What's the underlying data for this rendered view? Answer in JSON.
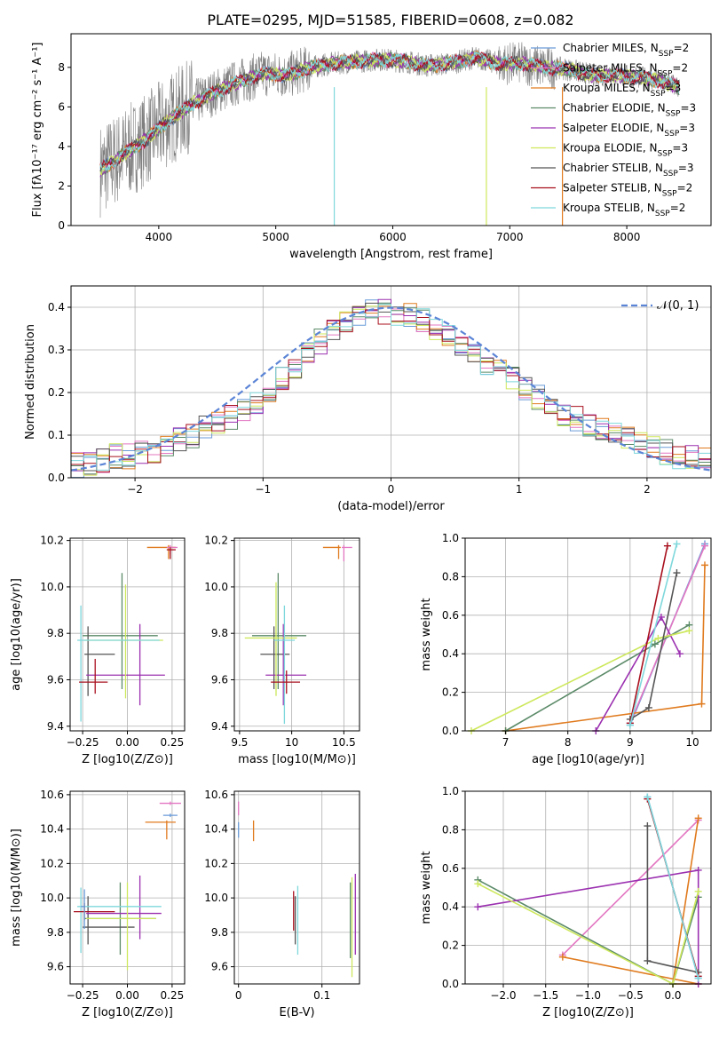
{
  "figure": {
    "title": "PLATE=0295, MJD=51585, FIBERID=0608, z=0.082"
  },
  "colors": {
    "chabrier_miles": "#6a9bd8",
    "salpeter_miles": "#e377c2",
    "kroupa_miles": "#e07b1f",
    "chabrier_elodie": "#5b8a68",
    "salpeter_elodie": "#9b30b0",
    "kroupa_elodie": "#cde85c",
    "chabrier_stelib": "#555555",
    "salpeter_stelib": "#a8101e",
    "kroupa_stelib": "#7fd8dc",
    "data": "#7f7f7f",
    "gaussian": "#5b84d6"
  },
  "legend": {
    "spectrum": [
      "Chabrier MILES, N_SSP=2",
      "Salpeter MILES, N_SSP=2",
      "Kroupa MILES, N_SSP=3",
      "Chabrier ELODIE, N_SSP=3",
      "Salpeter ELODIE, N_SSP=3",
      "Kroupa ELODIE, N_SSP=3",
      "Chabrier STELIB, N_SSP=3",
      "Salpeter STELIB, N_SSP=2",
      "Kroupa STELIB, N_SSP=2"
    ],
    "residuals": "𝒩(0, 1)"
  },
  "chart_data": [
    {
      "id": "spectrum",
      "type": "line",
      "xlabel": "wavelength [Angstrom, rest frame]",
      "ylabel": "Flux [fλ10⁻¹⁷ erg cm⁻² s⁻¹ A⁻¹]",
      "xlim": [
        3250,
        8720
      ],
      "ylim": [
        0,
        9.7
      ],
      "xticks": [
        4000,
        5000,
        6000,
        7000,
        8000
      ],
      "yticks": [
        0,
        2,
        4,
        6,
        8
      ],
      "grid": false,
      "legend_position": "right",
      "continuum": {
        "x": [
          3500,
          3700,
          3900,
          4100,
          4300,
          4500,
          4700,
          4900,
          5100,
          5300,
          5500,
          5700,
          5900,
          6100,
          6300,
          6500,
          6700,
          6900,
          7100,
          7300,
          7500,
          7700,
          7900,
          8100,
          8300,
          8450
        ],
        "y": [
          2.8,
          3.6,
          4.4,
          5.4,
          6.2,
          6.8,
          7.3,
          7.7,
          7.6,
          8.0,
          8.2,
          8.3,
          8.4,
          8.3,
          8.1,
          8.2,
          8.5,
          8.2,
          8.2,
          8.0,
          7.9,
          7.6,
          7.6,
          7.5,
          7.3,
          7.0
        ]
      }
    },
    {
      "id": "residuals",
      "type": "histogram",
      "xlabel": "(data-model)/error",
      "ylabel": "Normed distribution",
      "xlim": [
        -2.5,
        2.5
      ],
      "ylim": [
        0,
        0.45
      ],
      "xticks": [
        -2,
        -1,
        0,
        1,
        2
      ],
      "yticks": [
        0.0,
        0.1,
        0.2,
        0.3,
        0.4
      ],
      "grid": true,
      "legend_position": "top-right",
      "bin_width": 0.1,
      "bin_edges_start": -2.5,
      "series_values": [
        0.03,
        0.03,
        0.04,
        0.05,
        0.05,
        0.06,
        0.06,
        0.07,
        0.09,
        0.1,
        0.12,
        0.13,
        0.14,
        0.16,
        0.18,
        0.2,
        0.23,
        0.26,
        0.29,
        0.32,
        0.35,
        0.37,
        0.38,
        0.39,
        0.39,
        0.38,
        0.38,
        0.37,
        0.35,
        0.33,
        0.31,
        0.29,
        0.27,
        0.25,
        0.23,
        0.21,
        0.19,
        0.17,
        0.15,
        0.14,
        0.12,
        0.11,
        0.1,
        0.09,
        0.08,
        0.07,
        0.06,
        0.05,
        0.05,
        0.04
      ]
    },
    {
      "id": "age_vs_Z",
      "type": "scatter",
      "xlabel": "Z [log10(Z/Z⊙)]",
      "ylabel": "age [log10(age/yr)]",
      "xlim": [
        -0.32,
        0.32
      ],
      "ylim": [
        9.38,
        10.21
      ],
      "xticks": [
        -0.25,
        0.0,
        0.25
      ],
      "xtick_labels": [
        "−0.25",
        "0.00",
        "0.25"
      ],
      "yticks": [
        9.4,
        9.6,
        9.8,
        10.0,
        10.2
      ],
      "grid": true
    },
    {
      "id": "age_vs_mass",
      "type": "scatter",
      "xlabel": "mass [log10(M/M⊙)]",
      "xlim": [
        9.45,
        10.65
      ],
      "ylim": [
        9.38,
        10.21
      ],
      "xticks": [
        9.5,
        10.0,
        10.5
      ],
      "yticks": [
        9.4,
        9.6,
        9.8,
        10.0,
        10.2
      ],
      "grid": true
    },
    {
      "id": "weight_vs_age",
      "type": "line",
      "xlabel": "age [log10(age/yr)]",
      "ylabel": "mass weight",
      "xlim": [
        6.35,
        10.3
      ],
      "ylim": [
        0,
        1
      ],
      "xticks": [
        7,
        8,
        9,
        10
      ],
      "yticks": [
        0.0,
        0.2,
        0.4,
        0.6,
        0.8,
        1.0
      ],
      "grid": true,
      "series": [
        {
          "color": "#6a9bd8",
          "x": [
            9.0,
            10.2
          ],
          "y": [
            0.03,
            0.97
          ]
        },
        {
          "color": "#e377c2",
          "x": [
            9.0,
            10.2
          ],
          "y": [
            0.04,
            0.96
          ]
        },
        {
          "color": "#e07b1f",
          "x": [
            7.0,
            10.15,
            10.2
          ],
          "y": [
            0.0,
            0.14,
            0.86
          ]
        },
        {
          "color": "#5b8a68",
          "x": [
            7.0,
            9.4,
            9.95
          ],
          "y": [
            0.0,
            0.45,
            0.55
          ]
        },
        {
          "color": "#9b30b0",
          "x": [
            8.45,
            9.5,
            9.8
          ],
          "y": [
            0.0,
            0.59,
            0.4
          ]
        },
        {
          "color": "#cde85c",
          "x": [
            6.45,
            9.45,
            9.95
          ],
          "y": [
            0.0,
            0.48,
            0.52
          ]
        },
        {
          "color": "#555555",
          "x": [
            9.0,
            9.3,
            9.75
          ],
          "y": [
            0.06,
            0.12,
            0.82
          ]
        },
        {
          "color": "#a8101e",
          "x": [
            9.0,
            9.6
          ],
          "y": [
            0.04,
            0.96
          ]
        },
        {
          "color": "#7fd8dc",
          "x": [
            9.0,
            9.75
          ],
          "y": [
            0.03,
            0.97
          ]
        }
      ]
    },
    {
      "id": "mass_vs_Z",
      "type": "scatter",
      "xlabel": "Z [log10(Z/Z⊙)]",
      "ylabel": "mass [log10(M/M⊙)]",
      "xlim": [
        -0.32,
        0.32
      ],
      "ylim": [
        9.5,
        10.62
      ],
      "xticks": [
        -0.25,
        0.0,
        0.25
      ],
      "xtick_labels": [
        "−0.25",
        "0.00",
        "0.25"
      ],
      "yticks": [
        9.6,
        9.8,
        10.0,
        10.2,
        10.4,
        10.6
      ],
      "grid": true
    },
    {
      "id": "mass_vs_ebv",
      "type": "scatter",
      "xlabel": "E(B-V)",
      "xlim": [
        -0.005,
        0.145
      ],
      "ylim": [
        9.5,
        10.62
      ],
      "xticks": [
        0.0,
        0.1
      ],
      "yticks": [
        9.6,
        9.8,
        10.0,
        10.2,
        10.4,
        10.6
      ],
      "grid": true
    },
    {
      "id": "weight_vs_Z",
      "type": "line",
      "xlabel": "Z [log10(Z/Z⊙)]",
      "ylabel": "mass weight",
      "xlim": [
        -2.45,
        0.45
      ],
      "ylim": [
        0,
        1
      ],
      "xticks": [
        -2.0,
        -1.5,
        -1.0,
        -0.5,
        0.0
      ],
      "xtick_labels": [
        "−2.0",
        "−1.5",
        "−1.0",
        "−0.5",
        "0.0"
      ],
      "yticks": [
        0.0,
        0.2,
        0.4,
        0.6,
        0.8,
        1.0
      ],
      "grid": true,
      "series": [
        {
          "color": "#6a9bd8",
          "x": [
            0.3,
            -0.3
          ],
          "y": [
            0.03,
            0.97
          ]
        },
        {
          "color": "#e377c2",
          "x": [
            0.3,
            -1.3
          ],
          "y": [
            0.85,
            0.15
          ]
        },
        {
          "color": "#e07b1f",
          "x": [
            -1.3,
            0.3,
            0.0,
            0.3
          ],
          "y": [
            0.14,
            0.0,
            0.0,
            0.86
          ]
        },
        {
          "color": "#5b8a68",
          "x": [
            -2.3,
            0.0,
            0.3
          ],
          "y": [
            0.54,
            0.0,
            0.45
          ]
        },
        {
          "color": "#9b30b0",
          "x": [
            -2.3,
            0.3,
            0.3
          ],
          "y": [
            0.4,
            0.59,
            0.0
          ]
        },
        {
          "color": "#cde85c",
          "x": [
            -2.3,
            0.0,
            0.3
          ],
          "y": [
            0.52,
            0.0,
            0.48
          ]
        },
        {
          "color": "#555555",
          "x": [
            -0.3,
            -0.3,
            0.3
          ],
          "y": [
            0.82,
            0.12,
            0.06
          ]
        },
        {
          "color": "#a8101e",
          "x": [
            -0.3,
            0.3
          ],
          "y": [
            0.96,
            0.04
          ]
        },
        {
          "color": "#7fd8dc",
          "x": [
            -0.3,
            0.3
          ],
          "y": [
            0.97,
            0.03
          ]
        }
      ]
    }
  ],
  "points": {
    "age_Z": [
      {
        "color": "#e07b1f",
        "x": 0.23,
        "y": 10.17,
        "xe": [
          0.12,
          0.04
        ],
        "ye": [
          0.05,
          0.01
        ]
      },
      {
        "color": "#e377c2",
        "x": 0.24,
        "y": 10.17,
        "xe": [
          0.02,
          0.04
        ],
        "ye": [
          0.03,
          0.01
        ]
      },
      {
        "color": "#a8101e",
        "x": 0.24,
        "y": 10.16,
        "xe": [
          0.02,
          0.03
        ],
        "ye": [
          0.04,
          0.01
        ]
      },
      {
        "color": "#5b8a68",
        "x": -0.03,
        "y": 9.79,
        "xe": [
          0.22,
          0.2
        ],
        "ye": [
          0.23,
          0.27
        ]
      },
      {
        "color": "#555555",
        "x": -0.22,
        "y": 9.71,
        "xe": [
          0.02,
          0.15
        ],
        "ye": [
          0.18,
          0.12
        ]
      },
      {
        "color": "#9b30b0",
        "x": 0.07,
        "y": 9.62,
        "xe": [
          0.3,
          0.14
        ],
        "ye": [
          0.13,
          0.22
        ]
      },
      {
        "color": "#cde85c",
        "x": -0.01,
        "y": 9.77,
        "xe": [
          0.23,
          0.21
        ],
        "ye": [
          0.25,
          0.24
        ]
      },
      {
        "color": "#7fd8dc",
        "x": -0.26,
        "y": 9.77,
        "xe": [
          0.02,
          0.44
        ],
        "ye": [
          0.35,
          0.15
        ]
      },
      {
        "color": "#a8101e",
        "x": -0.18,
        "y": 9.59,
        "xe": [
          0.09,
          0.07
        ],
        "ye": [
          0.05,
          0.1
        ]
      }
    ],
    "age_mass": [
      {
        "color": "#e07b1f",
        "x": 10.45,
        "y": 10.17,
        "xe": [
          0.15,
          0.02
        ],
        "ye": [
          0.05,
          0.01
        ]
      },
      {
        "color": "#e377c2",
        "x": 10.5,
        "y": 10.17,
        "xe": [
          0.02,
          0.08
        ],
        "ye": [
          0.06,
          0.01
        ]
      },
      {
        "color": "#5b8a68",
        "x": 9.87,
        "y": 9.79,
        "xe": [
          0.25,
          0.27
        ],
        "ye": [
          0.23,
          0.27
        ]
      },
      {
        "color": "#555555",
        "x": 9.83,
        "y": 9.71,
        "xe": [
          0.13,
          0.15
        ],
        "ye": [
          0.15,
          0.12
        ]
      },
      {
        "color": "#9b30b0",
        "x": 9.92,
        "y": 9.62,
        "xe": [
          0.17,
          0.22
        ],
        "ye": [
          0.13,
          0.22
        ]
      },
      {
        "color": "#cde85c",
        "x": 9.85,
        "y": 9.78,
        "xe": [
          0.3,
          0.2
        ],
        "ye": [
          0.25,
          0.24
        ]
      },
      {
        "color": "#7fd8dc",
        "x": 9.93,
        "y": 9.77,
        "xe": [
          0.1,
          0.1
        ],
        "ye": [
          0.36,
          0.15
        ]
      },
      {
        "color": "#a8101e",
        "x": 9.95,
        "y": 9.59,
        "xe": [
          0.15,
          0.13
        ],
        "ye": [
          0.05,
          0.05
        ]
      }
    ],
    "mass_Z": [
      {
        "color": "#e377c2",
        "x": 0.24,
        "y": 10.55,
        "xe": [
          0.06,
          0.06
        ],
        "ye": [
          0.01,
          0.01
        ]
      },
      {
        "color": "#6a9bd8",
        "x": 0.24,
        "y": 10.48,
        "xe": [
          0.04,
          0.04
        ],
        "ye": [
          0.01,
          0.01
        ]
      },
      {
        "color": "#e07b1f",
        "x": 0.22,
        "y": 10.44,
        "xe": [
          0.12,
          0.05
        ],
        "ye": [
          0.1,
          0.01
        ]
      },
      {
        "color": "#5b8a68",
        "x": -0.04,
        "y": 9.88,
        "xe": [
          0.2,
          0.2
        ],
        "ye": [
          0.21,
          0.21
        ]
      },
      {
        "color": "#555555",
        "x": -0.22,
        "y": 9.83,
        "xe": [
          0.03,
          0.26
        ],
        "ye": [
          0.1,
          0.18
        ]
      },
      {
        "color": "#9b30b0",
        "x": 0.07,
        "y": 9.91,
        "xe": [
          0.3,
          0.12
        ],
        "ye": [
          0.15,
          0.22
        ]
      },
      {
        "color": "#cde85c",
        "x": 0.0,
        "y": 9.88,
        "xe": [
          0.23,
          0.16
        ],
        "ye": [
          0.3,
          0.21
        ]
      },
      {
        "color": "#7fd8dc",
        "x": -0.26,
        "y": 9.95,
        "xe": [
          0.02,
          0.45
        ],
        "ye": [
          0.27,
          0.11
        ]
      },
      {
        "color": "#a8101e",
        "x": -0.24,
        "y": 9.92,
        "xe": [
          0.06,
          0.17
        ],
        "ye": [
          0.05,
          0.05
        ]
      },
      {
        "color": "#6a9bd8",
        "x": -0.24,
        "y": 9.95,
        "xe": [
          0.02,
          0.0
        ],
        "ye": [
          0.13,
          0.1
        ]
      }
    ],
    "mass_ebv": [
      {
        "color": "#e377c2",
        "x": 0.0,
        "y": 10.48,
        "ye": [
          0.0,
          0.08
        ]
      },
      {
        "color": "#6a9bd8",
        "x": 0.0,
        "y": 10.4,
        "ye": [
          0.05,
          0.04
        ]
      },
      {
        "color": "#e07b1f",
        "x": 0.018,
        "y": 10.39,
        "ye": [
          0.06,
          0.06
        ]
      },
      {
        "color": "#a8101e",
        "x": 0.066,
        "y": 9.91,
        "ye": [
          0.1,
          0.13
        ]
      },
      {
        "color": "#555555",
        "x": 0.068,
        "y": 9.83,
        "ye": [
          0.1,
          0.18
        ]
      },
      {
        "color": "#7fd8dc",
        "x": 0.071,
        "y": 9.87,
        "ye": [
          0.2,
          0.2
        ]
      },
      {
        "color": "#5b8a68",
        "x": 0.134,
        "y": 9.88,
        "ye": [
          0.23,
          0.21
        ]
      },
      {
        "color": "#cde85c",
        "x": 0.136,
        "y": 9.82,
        "ye": [
          0.28,
          0.3
        ]
      },
      {
        "color": "#9b30b0",
        "x": 0.14,
        "y": 9.91,
        "ye": [
          0.24,
          0.23
        ]
      }
    ]
  }
}
